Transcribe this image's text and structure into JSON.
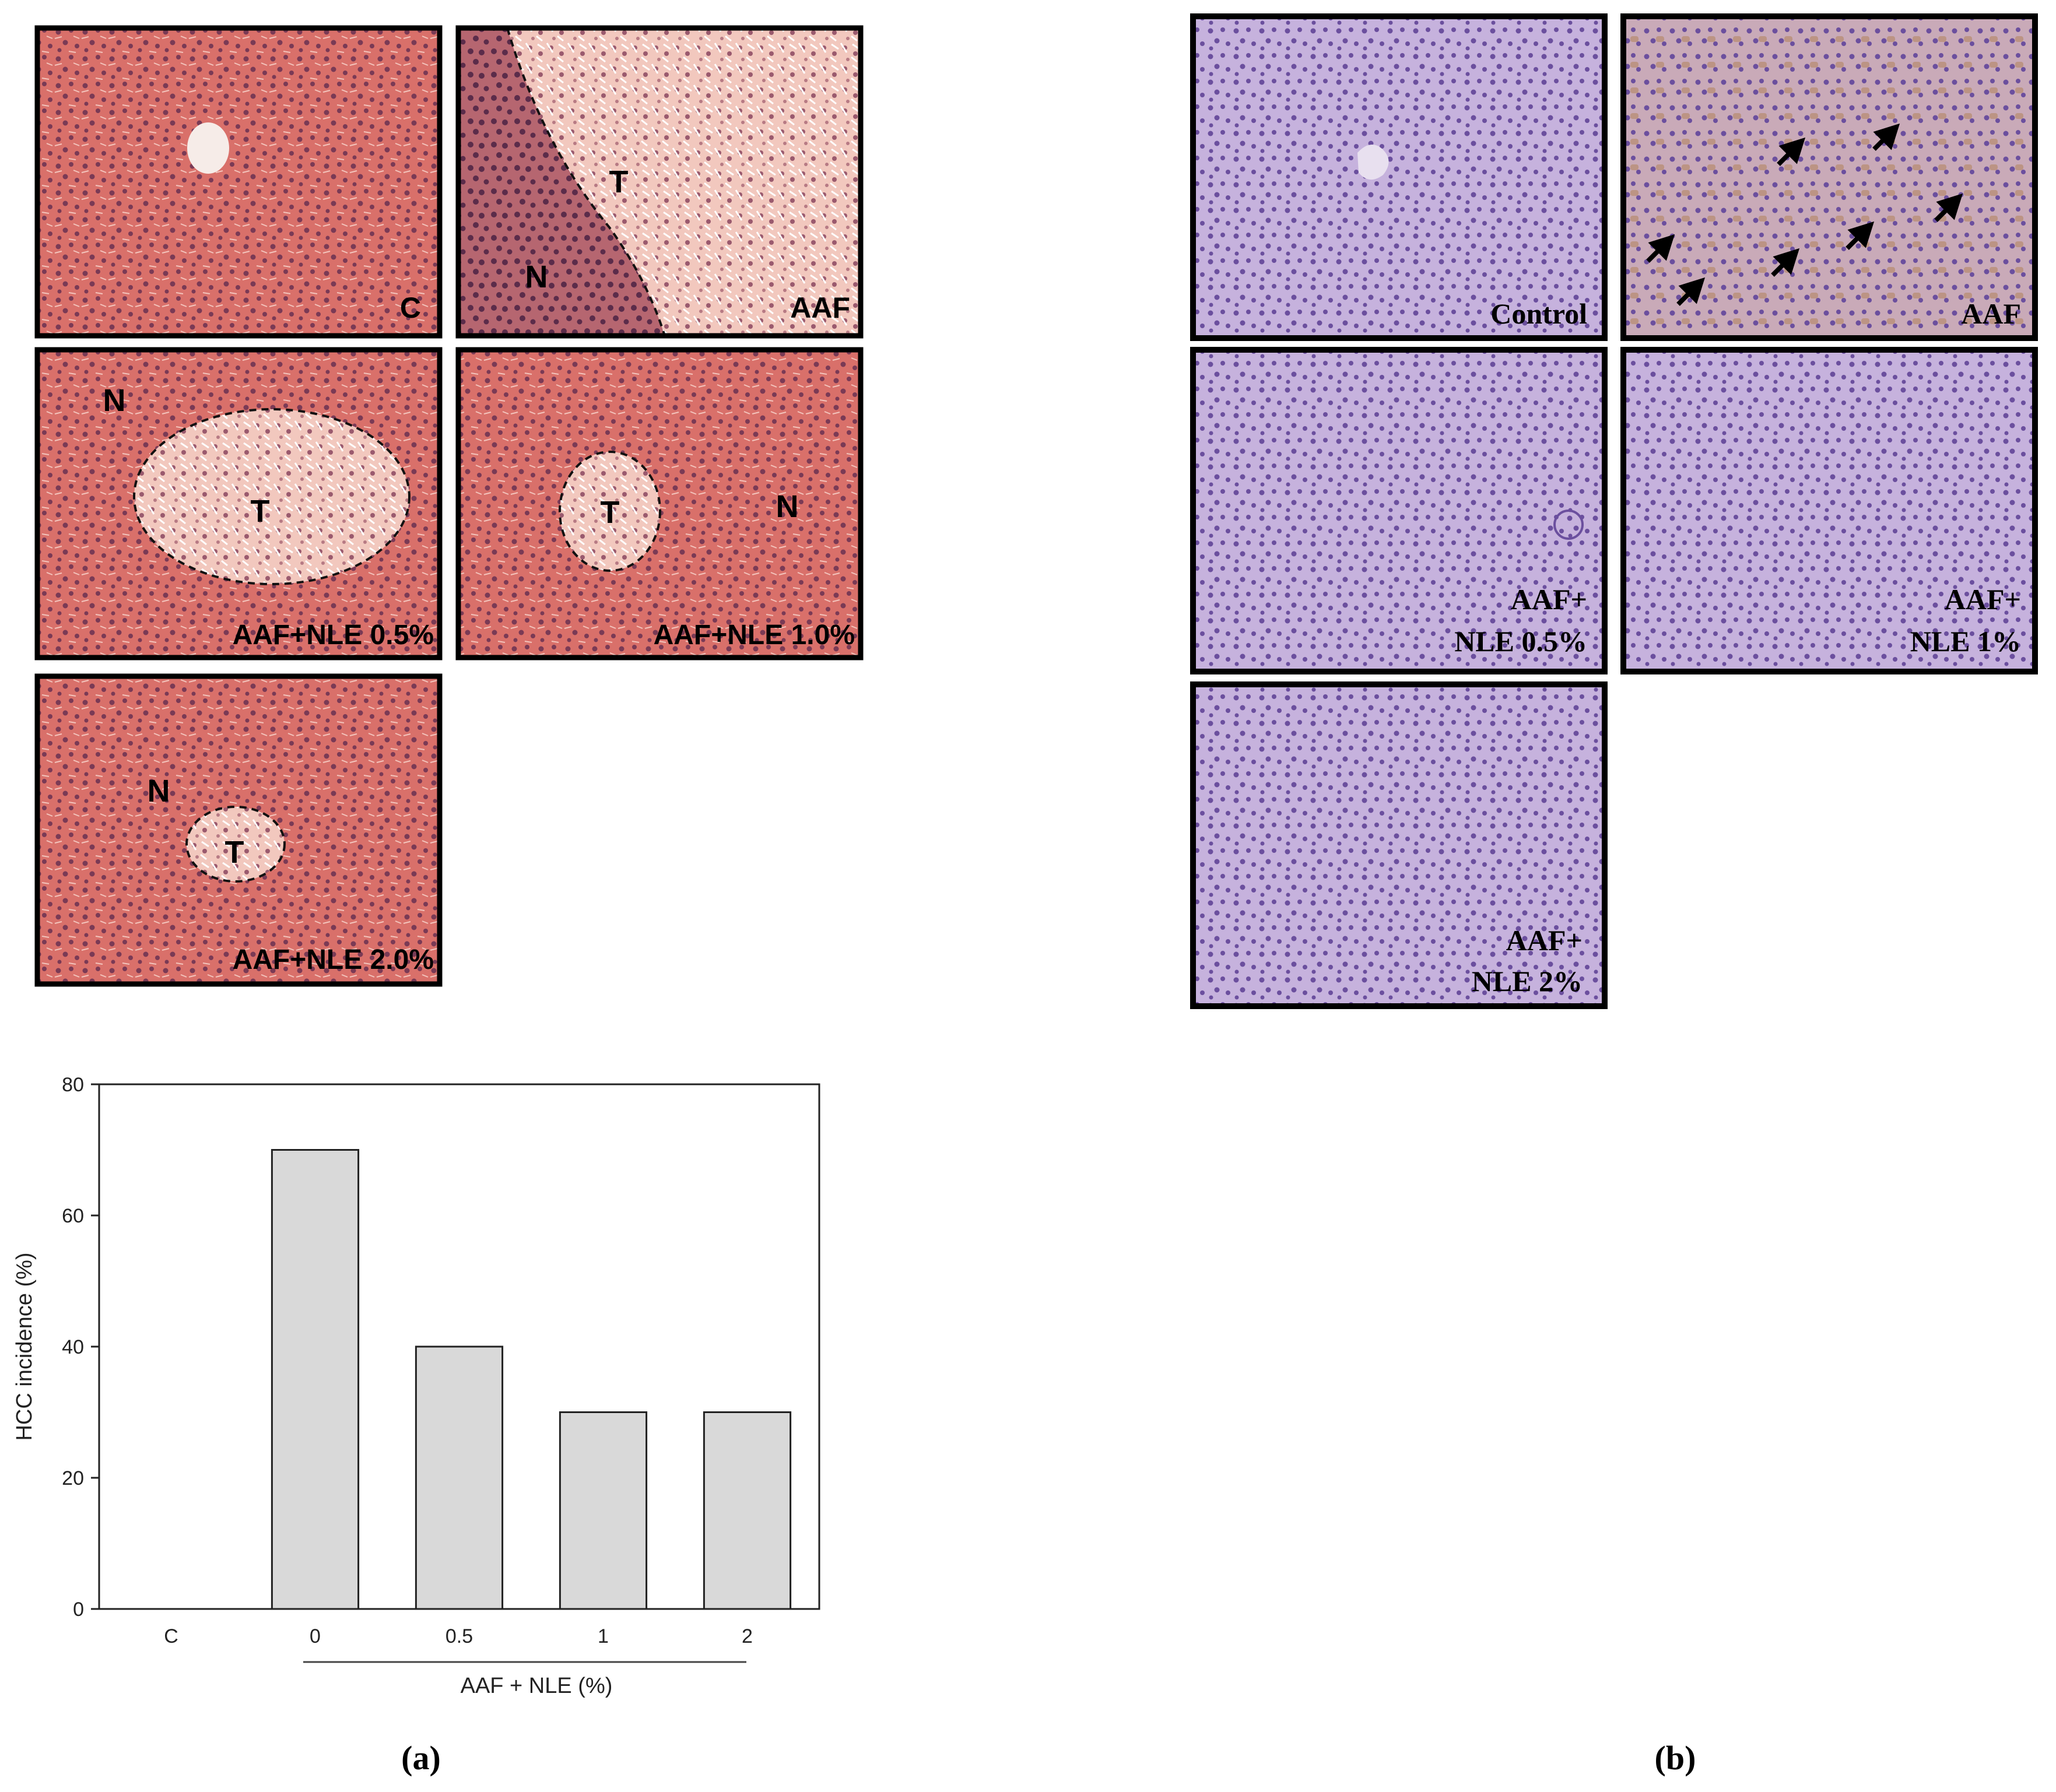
{
  "colors": {
    "he_stain": "#d9706a",
    "he_nuclei": "#7a3a55",
    "ihc_stain": "#c6b2dd",
    "ihc_nuclei": "#6b4f9e",
    "ihc_brown": "#b78a6e",
    "bar_fill": "#d9d9d9",
    "panel_border": "#000000"
  },
  "panel_a": {
    "caption": "(a)",
    "images": [
      {
        "id": "c",
        "label": "C",
        "icon": "he-liver-section",
        "region_labels": []
      },
      {
        "id": "aaf",
        "label": "AAF",
        "icon": "he-liver-section",
        "region_labels": [
          "T",
          "N"
        ]
      },
      {
        "id": "nle05",
        "label": "AAF+NLE 0.5%",
        "icon": "he-liver-section",
        "region_labels": [
          "N",
          "T"
        ]
      },
      {
        "id": "nle10",
        "label": "AAF+NLE 1.0%",
        "icon": "he-liver-section",
        "region_labels": [
          "T",
          "N"
        ]
      },
      {
        "id": "nle20",
        "label": "AAF+NLE 2.0%",
        "icon": "he-liver-section",
        "region_labels": [
          "N",
          "T"
        ]
      }
    ]
  },
  "panel_b": {
    "caption": "(b)",
    "images": [
      {
        "id": "control",
        "label_lines": [
          "Control"
        ],
        "icon": "ihc-liver-section",
        "arrows": 0
      },
      {
        "id": "aaf",
        "label_lines": [
          "AAF"
        ],
        "icon": "ihc-liver-section",
        "arrows": 7
      },
      {
        "id": "nle05",
        "label_lines": [
          "AAF+",
          "NLE 0.5%"
        ],
        "icon": "ihc-liver-section",
        "arrows": 0
      },
      {
        "id": "nle1",
        "label_lines": [
          "AAF+",
          "NLE 1%"
        ],
        "icon": "ihc-liver-section",
        "arrows": 0
      },
      {
        "id": "nle2",
        "label_lines": [
          "AAF+",
          "NLE 2%"
        ],
        "icon": "ihc-liver-section",
        "arrows": 0
      }
    ]
  },
  "chart_data": {
    "type": "bar",
    "categories": [
      "C",
      "0",
      "0.5",
      "1",
      "2"
    ],
    "values": [
      0,
      70,
      40,
      30,
      30
    ],
    "ylabel": "HCC incidence (%)",
    "xlabel": "AAF + NLE (%)",
    "ylim": [
      0,
      80
    ],
    "yticks": [
      0,
      20,
      40,
      60,
      80
    ],
    "grid": false,
    "legend": "none"
  }
}
